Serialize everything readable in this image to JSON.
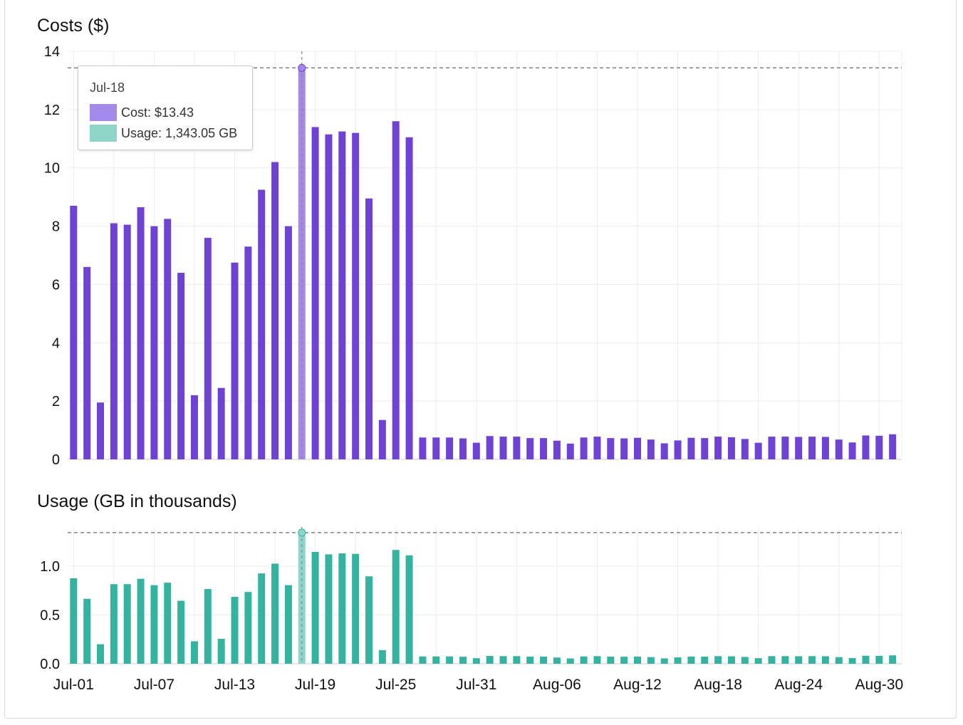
{
  "chart_data": [
    {
      "type": "bar",
      "title": "Costs ($)",
      "ylim": [
        0,
        14
      ],
      "yticks": [
        0,
        2,
        4,
        6,
        8,
        10,
        12,
        14
      ],
      "color": "#6f42d6",
      "highlight_color": "#a48ae8",
      "highlight_index": 17,
      "reference_line": 13.43,
      "grid": true,
      "categories": [
        "Jul-01",
        "Jul-02",
        "Jul-03",
        "Jul-04",
        "Jul-05",
        "Jul-06",
        "Jul-07",
        "Jul-08",
        "Jul-09",
        "Jul-10",
        "Jul-11",
        "Jul-12",
        "Jul-13",
        "Jul-14",
        "Jul-15",
        "Jul-16",
        "Jul-17",
        "Jul-18",
        "Jul-19",
        "Jul-20",
        "Jul-21",
        "Jul-22",
        "Jul-23",
        "Jul-24",
        "Jul-25",
        "Jul-26",
        "Jul-27",
        "Jul-28",
        "Jul-29",
        "Jul-30",
        "Jul-31",
        "Aug-01",
        "Aug-02",
        "Aug-03",
        "Aug-04",
        "Aug-05",
        "Aug-06",
        "Aug-07",
        "Aug-08",
        "Aug-09",
        "Aug-10",
        "Aug-11",
        "Aug-12",
        "Aug-13",
        "Aug-14",
        "Aug-15",
        "Aug-16",
        "Aug-17",
        "Aug-18",
        "Aug-19",
        "Aug-20",
        "Aug-21",
        "Aug-22",
        "Aug-23",
        "Aug-24",
        "Aug-25",
        "Aug-26",
        "Aug-27",
        "Aug-28",
        "Aug-29",
        "Aug-30",
        "Aug-31"
      ],
      "values": [
        8.7,
        6.6,
        1.95,
        8.1,
        8.05,
        8.65,
        8.0,
        8.25,
        6.4,
        2.2,
        7.6,
        2.45,
        6.75,
        7.3,
        9.25,
        10.2,
        8.0,
        13.43,
        11.4,
        11.15,
        11.25,
        11.2,
        8.95,
        1.35,
        11.6,
        11.05,
        0.75,
        0.75,
        0.75,
        0.72,
        0.57,
        0.8,
        0.78,
        0.78,
        0.73,
        0.73,
        0.64,
        0.54,
        0.75,
        0.78,
        0.73,
        0.72,
        0.74,
        0.68,
        0.55,
        0.65,
        0.74,
        0.73,
        0.78,
        0.76,
        0.7,
        0.57,
        0.78,
        0.78,
        0.77,
        0.78,
        0.77,
        0.68,
        0.58,
        0.82,
        0.81,
        0.86
      ]
    },
    {
      "type": "bar",
      "title": "Usage (GB in thousands)",
      "ylim": [
        0,
        1.4
      ],
      "yticks": [
        "0.0",
        "0.5",
        "1.0"
      ],
      "color": "#34b3a0",
      "highlight_color": "#8fd6c8",
      "highlight_index": 17,
      "reference_line": 1.343,
      "grid": true,
      "xticks": [
        "Jul-01",
        "Jul-07",
        "Jul-13",
        "Jul-19",
        "Jul-25",
        "Jul-31",
        "Aug-06",
        "Aug-12",
        "Aug-18",
        "Aug-24",
        "Aug-30"
      ],
      "values": [
        0.875,
        0.665,
        0.2,
        0.815,
        0.815,
        0.87,
        0.805,
        0.83,
        0.645,
        0.23,
        0.765,
        0.255,
        0.685,
        0.735,
        0.925,
        1.025,
        0.805,
        1.343,
        1.145,
        1.12,
        1.13,
        1.125,
        0.895,
        0.14,
        1.165,
        1.11,
        0.075,
        0.075,
        0.075,
        0.072,
        0.057,
        0.08,
        0.078,
        0.078,
        0.073,
        0.073,
        0.064,
        0.054,
        0.075,
        0.078,
        0.073,
        0.072,
        0.074,
        0.068,
        0.055,
        0.065,
        0.074,
        0.073,
        0.078,
        0.076,
        0.07,
        0.057,
        0.078,
        0.078,
        0.077,
        0.078,
        0.077,
        0.068,
        0.058,
        0.082,
        0.081,
        0.086
      ]
    }
  ],
  "tooltip": {
    "date": "Jul-18",
    "cost_label": "Cost: $13.43",
    "usage_label": "Usage: 1,343.05 GB",
    "cost_color": "#a48ae8",
    "usage_color": "#8fd6c8"
  }
}
